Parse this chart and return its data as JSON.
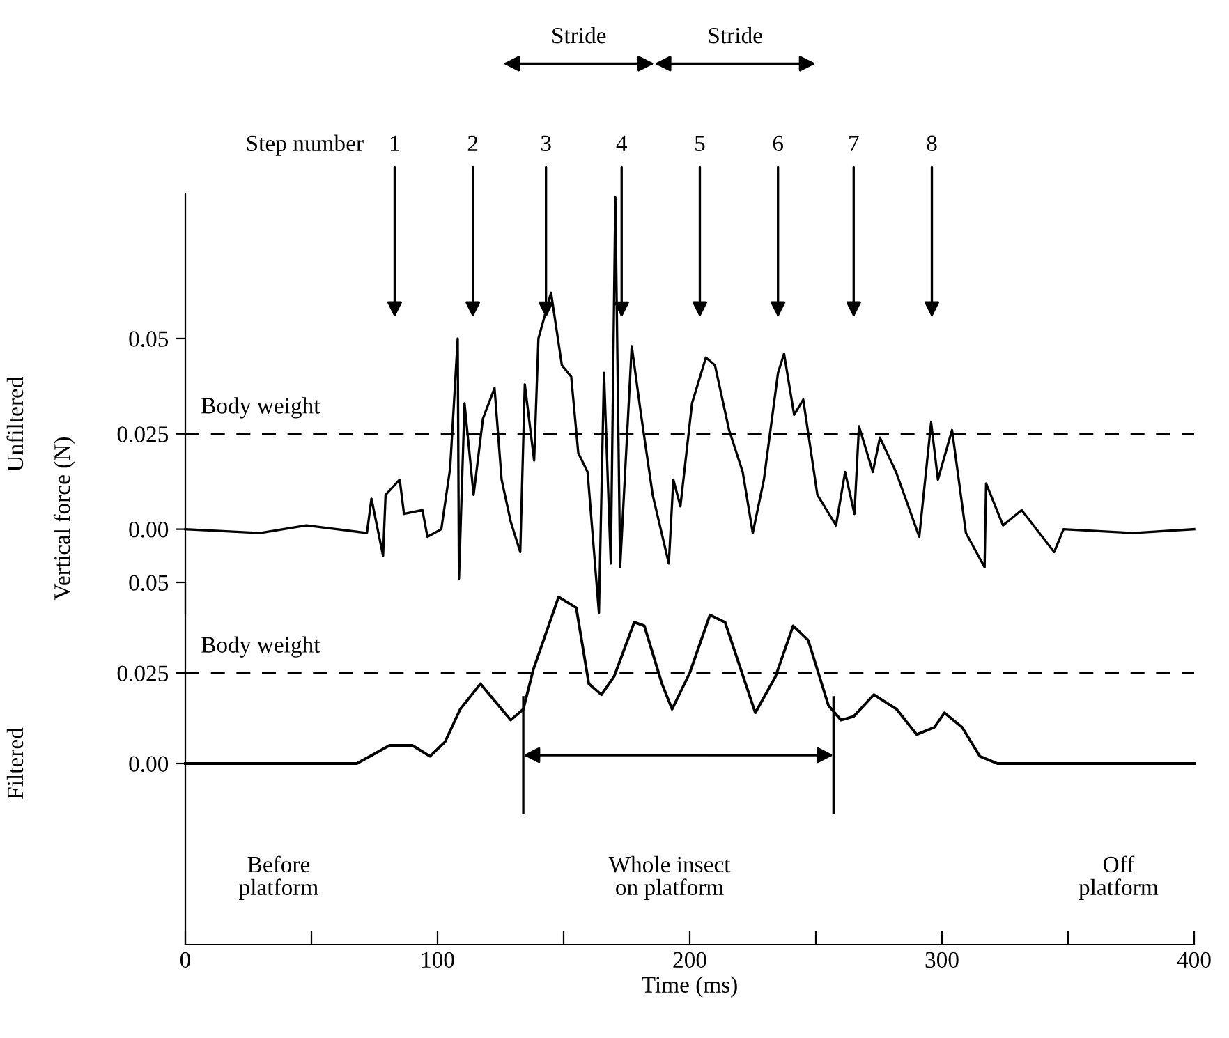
{
  "chart_data": [
    {
      "type": "line",
      "ylabel": "Unfiltered",
      "xlim": [
        0,
        400
      ],
      "ylim": [
        -0.022,
        0.088
      ],
      "yticks": [
        {
          "value": 0,
          "label": "0.00"
        },
        {
          "value": 0.025,
          "label": "0.025"
        },
        {
          "value": 0.05,
          "label": "0.05"
        }
      ],
      "tick_labels": "y",
      "grid": false,
      "legend": false,
      "series": [
        {
          "color": "#000000",
          "x": [
            0,
            29.6,
            48,
            72,
            73.8,
            78.4,
            79.4,
            85,
            86.7,
            94,
            96,
            101.5,
            105,
            108,
            108.5,
            110.7,
            114.3,
            118,
            122.6,
            125.4,
            129,
            132.8,
            134.6,
            138.3,
            140,
            145,
            149.3,
            153,
            155.8,
            159.5,
            164,
            166,
            168.7,
            170.5,
            172.4,
            177,
            180.7,
            185.3,
            191.7,
            193.5,
            196.3,
            200.9,
            206.4,
            210,
            215.6,
            221,
            225,
            229.4,
            235,
            237.4,
            241.4,
            245,
            250.6,
            258,
            261.6,
            265.3,
            267.1,
            272.6,
            275.4,
            281.8,
            291,
            295.7,
            298.4,
            304,
            309.5,
            316.9,
            317.5,
            324.2,
            331.6,
            344.5,
            348.2,
            375.8,
            400
          ],
          "values": [
            0,
            -0.001,
            0.001,
            -0.001,
            0.008,
            -0.007,
            0.009,
            0.013,
            0.004,
            0.005,
            -0.002,
            0,
            0.016,
            0.05,
            -0.013,
            0.033,
            0.009,
            0.029,
            0.037,
            0.013,
            0.002,
            -0.006,
            0.038,
            0.018,
            0.05,
            0.062,
            0.043,
            0.04,
            0.02,
            0.015,
            -0.022,
            0.041,
            -0.009,
            0.087,
            -0.01,
            0.048,
            0.03,
            0.009,
            -0.009,
            0.013,
            0.006,
            0.033,
            0.045,
            0.043,
            0.026,
            0.015,
            -0.001,
            0.013,
            0.041,
            0.046,
            0.03,
            0.034,
            0.009,
            0.001,
            0.015,
            0.004,
            0.027,
            0.015,
            0.024,
            0.015,
            -0.002,
            0.028,
            0.013,
            0.026,
            -0.001,
            -0.01,
            0.012,
            0.001,
            0.005,
            -0.006,
            0,
            -0.001,
            0
          ]
        }
      ],
      "ref_lines": [
        {
          "axis": "y",
          "value": 0.025,
          "label": "Body weight",
          "line_style": "dashed",
          "color": "#000000"
        }
      ],
      "annotations": [
        "Step number",
        "Vertical force (N)",
        "Stride",
        "Stride",
        "1",
        "2",
        {
          "text": "3",
          "x": 143,
          "y": 0.0555
        },
        {
          "text": "4",
          "x": 173,
          "y": 0.0555
        },
        "5",
        "6",
        "7",
        "8"
      ]
    },
    {
      "type": "line",
      "ylabel": "Filtered",
      "xlabel": "Time (ms)",
      "xlim": [
        0,
        400
      ],
      "ylim": [
        -0.05,
        0.05
      ],
      "xticks": [
        0,
        {
          "value": 50,
          "label": null
        },
        100,
        {
          "value": 150,
          "label": null
        },
        200,
        {
          "value": 250,
          "label": null
        },
        300,
        {
          "value": 350,
          "label": null
        },
        400
      ],
      "yticks": [
        {
          "value": 0,
          "label": "0.00"
        },
        {
          "value": 0.025,
          "label": "0.025"
        },
        {
          "value": 0.05,
          "label": "0.05"
        }
      ],
      "grid": false,
      "legend": false,
      "series": [
        {
          "color": "#000000",
          "x": [
            0,
            68,
            81,
            90,
            97,
            103,
            109,
            117,
            129,
            134,
            138,
            148,
            155,
            160,
            165,
            170,
            178,
            182,
            189,
            193,
            200,
            208,
            214,
            226,
            234,
            241,
            247,
            255,
            260,
            265,
            273,
            282,
            290,
            297,
            301,
            308,
            315,
            322,
            400
          ],
          "values": [
            0,
            0,
            0.005,
            0.005,
            0.002,
            0.006,
            0.015,
            0.022,
            0.012,
            0.015,
            0.026,
            0.046,
            0.043,
            0.022,
            0.019,
            0.024,
            0.039,
            0.038,
            0.022,
            0.015,
            0.025,
            0.041,
            0.039,
            0.014,
            0.024,
            0.038,
            0.034,
            0.016,
            0.012,
            0.013,
            0.019,
            0.015,
            0.008,
            0.01,
            0.014,
            0.01,
            0.002,
            0,
            0
          ]
        }
      ],
      "ref_lines": [
        {
          "axis": "y",
          "value": 0.025,
          "label": "Body weight",
          "line_style": "dashed",
          "color": "#000000"
        }
      ],
      "annotations": [
        "Before\nplatform",
        "Whole insect\non platform",
        "Off\nplatform"
      ]
    }
  ]
}
